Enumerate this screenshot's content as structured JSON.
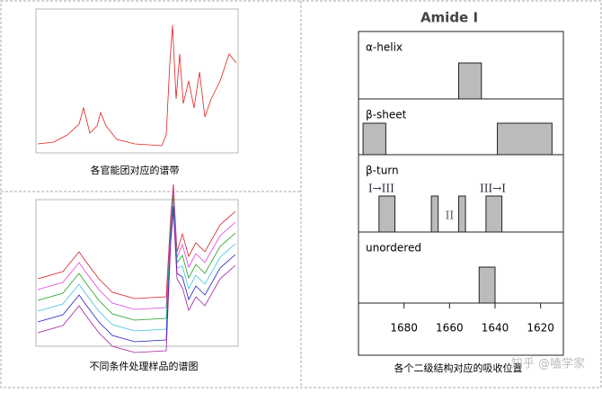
{
  "panels": [
    {
      "caption": "各官能团对应的谱带"
    },
    {
      "caption": "不同条件处理样品的谱图"
    }
  ],
  "amide_chart": {
    "title": "Amide I",
    "xlim": [
      1700,
      1610
    ],
    "xticks": [
      1680,
      1660,
      1640,
      1620
    ],
    "rows": [
      {
        "label": "α-helix",
        "bars": [
          [
            1656,
            1646
          ]
        ]
      },
      {
        "label": "β-sheet",
        "bars": [
          [
            1698,
            1688
          ],
          [
            1639,
            1615
          ]
        ]
      },
      {
        "label": "β-turn",
        "bars": [
          [
            1691,
            1684
          ],
          [
            1668,
            1665
          ],
          [
            1656,
            1653
          ],
          [
            1644,
            1637
          ]
        ],
        "annotations": [
          {
            "text": "I→III",
            "x": 1690
          },
          {
            "text": "II",
            "x": 1660
          },
          {
            "text": "III→I",
            "x": 1641
          }
        ]
      },
      {
        "label": "unordered",
        "bars": [
          [
            1647,
            1640
          ]
        ]
      }
    ],
    "caption": "各个二级结构对应的吸收位置"
  },
  "watermark": "知乎 @嗑学家"
}
